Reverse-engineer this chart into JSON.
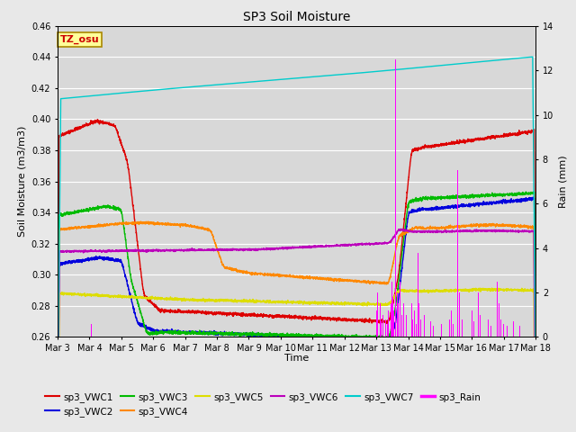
{
  "title": "SP3 Soil Moisture",
  "xlabel": "Time",
  "ylabel_left": "Soil Moisture (m3/m3)",
  "ylabel_right": "Rain (mm)",
  "ylim_left": [
    0.26,
    0.46
  ],
  "ylim_right": [
    0,
    14
  ],
  "yticks_left": [
    0.26,
    0.28,
    0.3,
    0.32,
    0.34,
    0.36,
    0.38,
    0.4,
    0.42,
    0.44,
    0.46
  ],
  "yticks_right": [
    0,
    2,
    4,
    6,
    8,
    10,
    12,
    14
  ],
  "xlim": [
    0,
    15
  ],
  "xtick_labels": [
    "Mar 3",
    "Mar 4",
    "Mar 5",
    "Mar 6",
    "Mar 7",
    "Mar 8",
    "Mar 9",
    "Mar 10",
    "Mar 11",
    "Mar 12",
    "Mar 13",
    "Mar 14",
    "Mar 15",
    "Mar 16",
    "Mar 17",
    "Mar 18"
  ],
  "xtick_positions": [
    0,
    1,
    2,
    3,
    4,
    5,
    6,
    7,
    8,
    9,
    10,
    11,
    12,
    13,
    14,
    15
  ],
  "annotation_text": "TZ_osu",
  "annotation_color": "#cc0000",
  "annotation_bg": "#ffff99",
  "annotation_border": "#aa8800",
  "colors": {
    "sp3_VWC1": "#dd0000",
    "sp3_VWC2": "#0000dd",
    "sp3_VWC3": "#00bb00",
    "sp3_VWC4": "#ff8800",
    "sp3_VWC5": "#dddd00",
    "sp3_VWC6": "#bb00bb",
    "sp3_VWC7": "#00cccc",
    "sp3_Rain": "#ff00ff"
  },
  "bg_color": "#e8e8e8",
  "plot_bg": "#d8d8d8",
  "grid_color": "#ffffff",
  "fig_bg": "#e8e8e8"
}
